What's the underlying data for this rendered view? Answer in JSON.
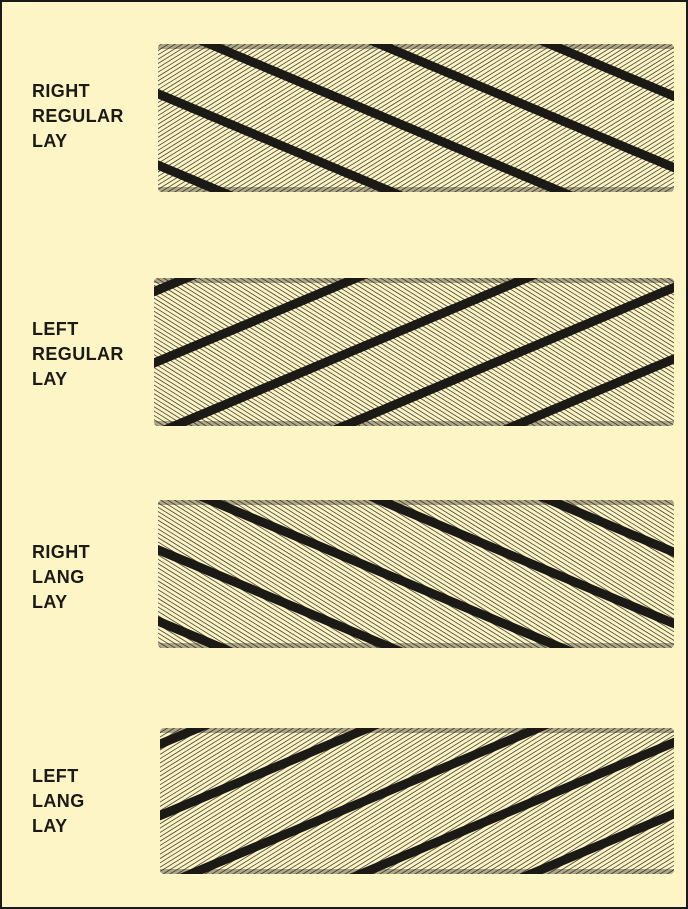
{
  "colors": {
    "background": "#fdf5c5",
    "ink": "#1c1a16",
    "frame": "#1a1a1a"
  },
  "ropes": [
    {
      "lines": [
        "RIGHT",
        "REGULAR",
        "LAY"
      ],
      "strand_direction": "right",
      "lay_type": "regular"
    },
    {
      "lines": [
        "LEFT",
        "REGULAR",
        "LAY"
      ],
      "strand_direction": "left",
      "lay_type": "regular"
    },
    {
      "lines": [
        "RIGHT",
        "LANG",
        "LAY"
      ],
      "strand_direction": "right",
      "lay_type": "lang"
    },
    {
      "lines": [
        "LEFT",
        "LANG",
        "LAY"
      ],
      "strand_direction": "left",
      "lay_type": "lang"
    }
  ]
}
